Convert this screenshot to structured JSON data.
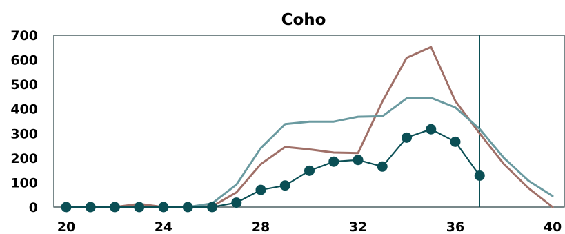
{
  "chart_data": {
    "type": "line",
    "title": "Coho",
    "xlabel": "",
    "ylabel": "",
    "xlim": [
      20,
      40
    ],
    "ylim": [
      0,
      700
    ],
    "x_ticks": [
      20,
      24,
      28,
      32,
      36,
      40
    ],
    "y_ticks": [
      0,
      100,
      200,
      300,
      400,
      500,
      600,
      700
    ],
    "grid": false,
    "legend": "none",
    "vertical_marker_x": 37,
    "series": [
      {
        "color": "#a07068",
        "markers": false,
        "x": [
          20,
          21,
          22,
          23,
          24,
          25,
          26,
          27,
          28,
          29,
          30,
          31,
          32,
          33,
          34,
          35,
          36,
          37,
          38,
          39,
          40
        ],
        "y": [
          0,
          0,
          0,
          13,
          0,
          0,
          3,
          60,
          175,
          245,
          235,
          222,
          220,
          430,
          608,
          652,
          432,
          300,
          175,
          78,
          0
        ]
      },
      {
        "color": "#6a9aa0",
        "markers": false,
        "x": [
          20,
          21,
          22,
          23,
          24,
          25,
          26,
          27,
          28,
          29,
          30,
          31,
          32,
          33,
          34,
          35,
          36,
          37,
          38,
          39,
          40
        ],
        "y": [
          0,
          0,
          0,
          0,
          0,
          0,
          15,
          92,
          240,
          338,
          348,
          348,
          368,
          370,
          443,
          445,
          406,
          318,
          200,
          108,
          45
        ]
      },
      {
        "color": "#0b4f55",
        "markers": true,
        "x": [
          20,
          21,
          22,
          23,
          24,
          25,
          26,
          27,
          28,
          29,
          30,
          31,
          32,
          33,
          34,
          35,
          36,
          37
        ],
        "y": [
          0,
          0,
          0,
          0,
          0,
          0,
          0,
          18,
          70,
          88,
          148,
          185,
          192,
          165,
          283,
          317,
          266,
          128
        ]
      }
    ]
  }
}
